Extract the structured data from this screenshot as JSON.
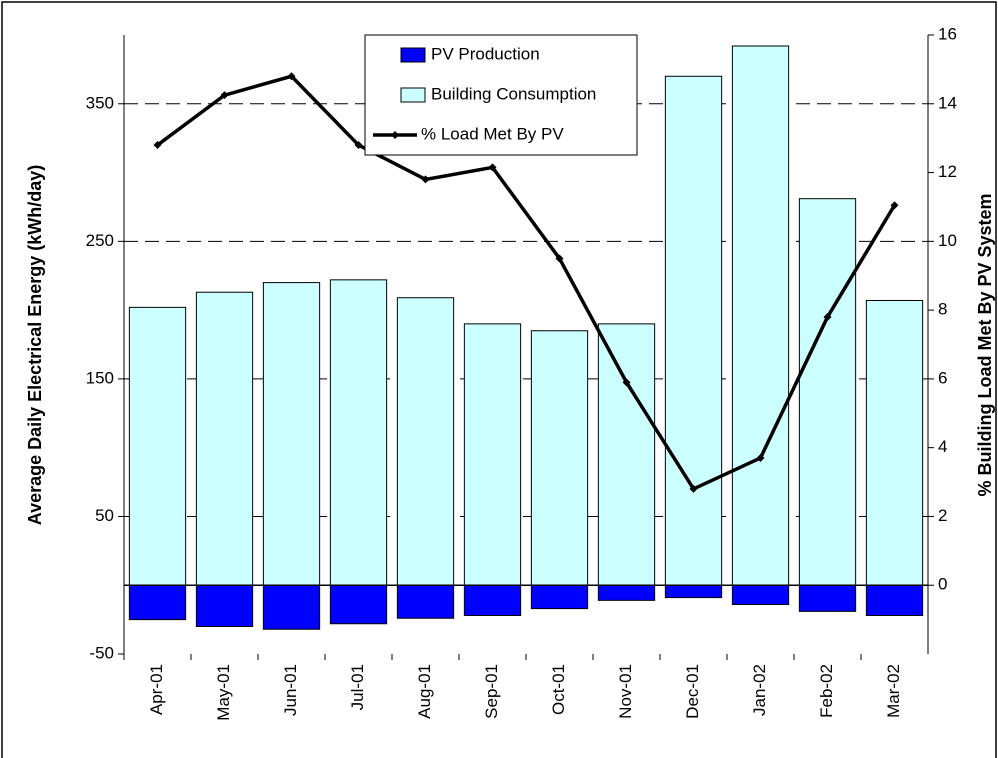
{
  "chart_data": {
    "type": "bar",
    "categories": [
      "Apr-01",
      "May-01",
      "Jun-01",
      "Jul-01",
      "Aug-01",
      "Sep-01",
      "Oct-01",
      "Nov-01",
      "Dec-01",
      "Jan-02",
      "Feb-02",
      "Mar-02"
    ],
    "series": [
      {
        "name": "PV Production",
        "color": "#0000ff",
        "values": [
          -25,
          -30,
          -32,
          -28,
          -24,
          -22,
          -17,
          -11,
          -9,
          -14,
          -19,
          -22
        ]
      },
      {
        "name": "Building Consumption",
        "color": "#ccffff",
        "values": [
          202,
          213,
          220,
          222,
          209,
          190,
          185,
          190,
          370,
          392,
          281,
          207
        ]
      },
      {
        "name": "% Load Met By PV",
        "color": "#000000",
        "type": "line",
        "axis": "y2",
        "values": [
          12.8,
          14.25,
          14.8,
          12.8,
          11.8,
          12.15,
          9.5,
          5.9,
          2.8,
          3.7,
          7.8,
          11.05
        ]
      }
    ],
    "ylabel": "Average Daily Electrical Energy (kWh/day)",
    "y2label": "% Building Load Met By PV System",
    "ylim": [
      -50,
      400
    ],
    "yticks": [
      -50,
      50,
      150,
      250,
      350
    ],
    "y2lim": [
      -2,
      16
    ],
    "y2ticks": [
      0,
      2,
      4,
      6,
      8,
      10,
      12,
      14,
      16
    ],
    "grid": true,
    "legend": "top"
  }
}
